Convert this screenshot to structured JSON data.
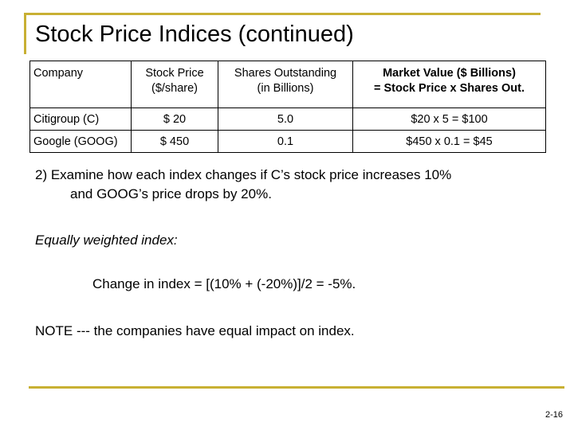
{
  "slide": {
    "title": "Stock Price Indices (continued)",
    "page_number": "2-16",
    "accent_color": "#c8b033"
  },
  "table": {
    "headers": [
      {
        "line1": "Company",
        "line2": ""
      },
      {
        "line1": "Stock Price",
        "line2": "($/share)"
      },
      {
        "line1": "Shares Outstanding",
        "line2": "(in Billions)"
      },
      {
        "line1": "Market Value ($ Billions)",
        "line2": "= Stock Price x Shares Out."
      }
    ],
    "rows": [
      [
        "Citigroup (C)",
        "$ 20",
        "5.0",
        "$20 x 5 = $100"
      ],
      [
        "Google (GOOG)",
        "$ 450",
        "0.1",
        "$450 x 0.1  =  $45"
      ]
    ]
  },
  "body": {
    "question_line1": "2) Examine how each index changes if C’s stock price increases 10%",
    "question_line2": "and GOOG’s price drops by 20%.",
    "equal_weight_label": "Equally weighted index:",
    "change_formula": "Change in index =  [(10% + (-20%)]/2 =  -5%.",
    "note": "NOTE --- the companies have equal impact on index."
  }
}
